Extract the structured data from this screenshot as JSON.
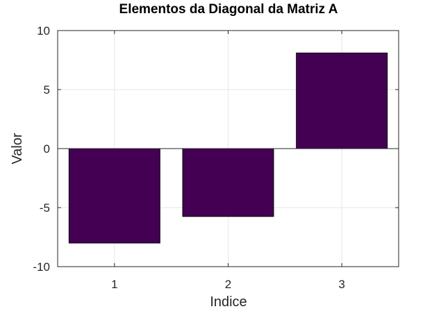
{
  "chart_data": {
    "type": "bar",
    "title": "Elementos da Diagonal da Matriz A",
    "xlabel": "Indice",
    "ylabel": "Valor",
    "categories": [
      "1",
      "2",
      "3"
    ],
    "values": [
      -8.0,
      -5.75,
      8.1
    ],
    "ylim": [
      -10,
      10
    ],
    "yticks": [
      -10,
      -5,
      0,
      5,
      10
    ],
    "grid": true,
    "bar_color": "#440154"
  }
}
